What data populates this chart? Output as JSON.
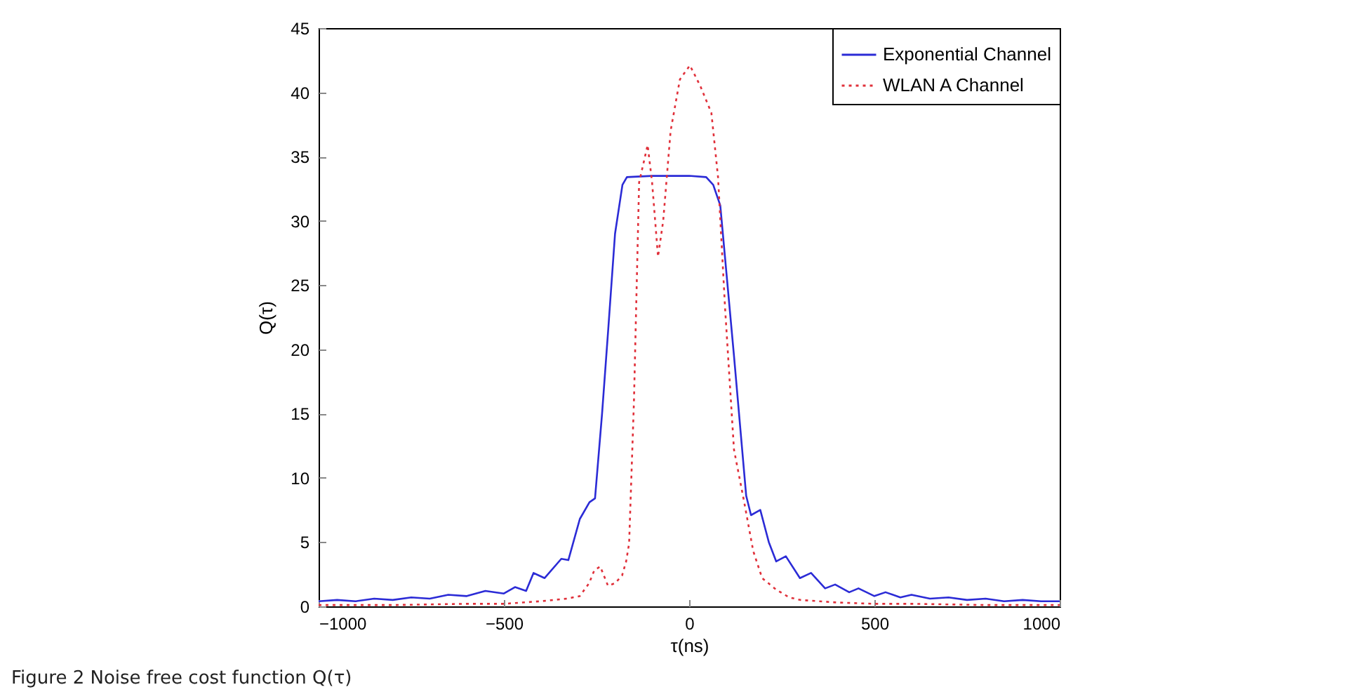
{
  "chart_data": {
    "type": "line",
    "xlabel": "τ(ns)",
    "ylabel": "Q(τ)",
    "annotations": [
      "Figure 2 Noise free cost function Q(τ)"
    ],
    "xlim": [
      -1000,
      1000
    ],
    "xticks": [
      -1000,
      -500,
      0,
      500,
      1000
    ],
    "ylim": [
      0,
      45
    ],
    "yticks": [
      0,
      5,
      10,
      15,
      20,
      25,
      30,
      35,
      40,
      45
    ],
    "grid": false,
    "legend": "top right",
    "marker": "none",
    "series": [
      {
        "name": "Exponential Channel",
        "color": "#2b2bd6",
        "line_style": "solid",
        "x": [
          -1000,
          -950,
          -900,
          -850,
          -800,
          -750,
          -700,
          -650,
          -600,
          -550,
          -500,
          -470,
          -440,
          -420,
          -390,
          -345,
          -326,
          -295,
          -269,
          -254,
          -235,
          -219,
          -200,
          -180,
          -168,
          -100,
          0,
          46,
          65,
          84,
          121,
          154,
          167,
          192,
          215,
          235,
          261,
          299,
          329,
          367,
          394,
          432,
          457,
          500,
          530,
          570,
          600,
          650,
          700,
          750,
          800,
          850,
          900,
          950,
          1000
        ],
        "values": [
          0.4,
          0.5,
          0.4,
          0.6,
          0.5,
          0.7,
          0.6,
          0.9,
          0.8,
          1.2,
          1.0,
          1.5,
          1.2,
          2.6,
          2.2,
          3.7,
          3.6,
          6.8,
          8.1,
          8.4,
          15,
          21.3,
          29,
          32.8,
          33.4,
          33.5,
          33.5,
          33.4,
          32.8,
          31.2,
          19.5,
          8.6,
          7.1,
          7.5,
          5,
          3.5,
          3.9,
          2.2,
          2.6,
          1.4,
          1.7,
          1.1,
          1.4,
          0.8,
          1.1,
          0.7,
          0.9,
          0.6,
          0.7,
          0.5,
          0.6,
          0.4,
          0.5,
          0.4,
          0.4
        ]
      },
      {
        "name": "WLAN A Channel",
        "color": "#e0303a",
        "line_style": "dotted",
        "x": [
          -1000,
          -800,
          -600,
          -500,
          -400,
          -330,
          -295,
          -270,
          -256,
          -240,
          -219,
          -200,
          -181,
          -170,
          -162,
          -149,
          -135,
          -112,
          -100,
          -84,
          -70,
          -50,
          -25,
          2,
          30,
          60,
          78,
          97,
          121,
          148,
          173,
          197,
          235,
          270,
          300,
          400,
          500,
          600,
          800,
          1000
        ],
        "values": [
          0.1,
          0.1,
          0.2,
          0.2,
          0.4,
          0.6,
          0.8,
          1.8,
          2.8,
          3.1,
          1.6,
          1.8,
          2.4,
          3.5,
          4.9,
          15.9,
          33,
          35.9,
          33,
          27.2,
          30,
          37,
          41,
          42.1,
          40.5,
          38.4,
          33.4,
          23.2,
          12.2,
          8.2,
          4.3,
          2.2,
          1.3,
          0.7,
          0.5,
          0.3,
          0.2,
          0.2,
          0.1,
          0.1
        ]
      }
    ]
  }
}
